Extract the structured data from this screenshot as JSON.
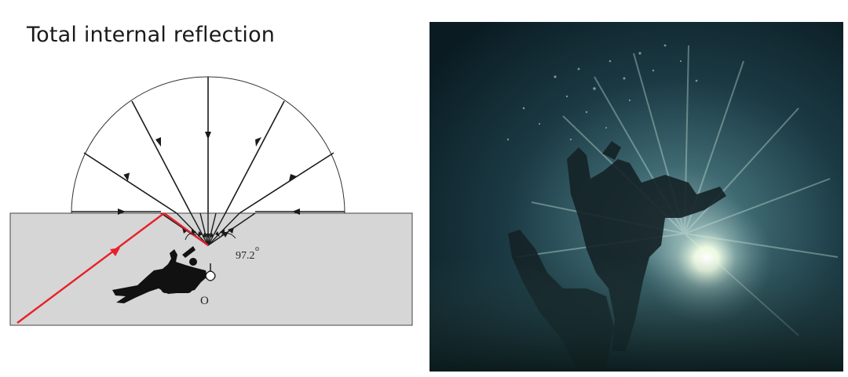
{
  "title": "Total internal reflection",
  "diagram": {
    "angle_value": "97.2",
    "angle_degree_mark": "o",
    "observer_label": "O",
    "colors": {
      "water": "#d6d6d6",
      "ray": "#1a1a1a",
      "reflected_ray": "#e8202a"
    }
  },
  "photo": {
    "subject": "divers-underwater-silhouette",
    "colors": {
      "deep_water": "#0b1f26",
      "mid_water": "#2f5560",
      "sun_glow": "#f4ffe8"
    }
  }
}
